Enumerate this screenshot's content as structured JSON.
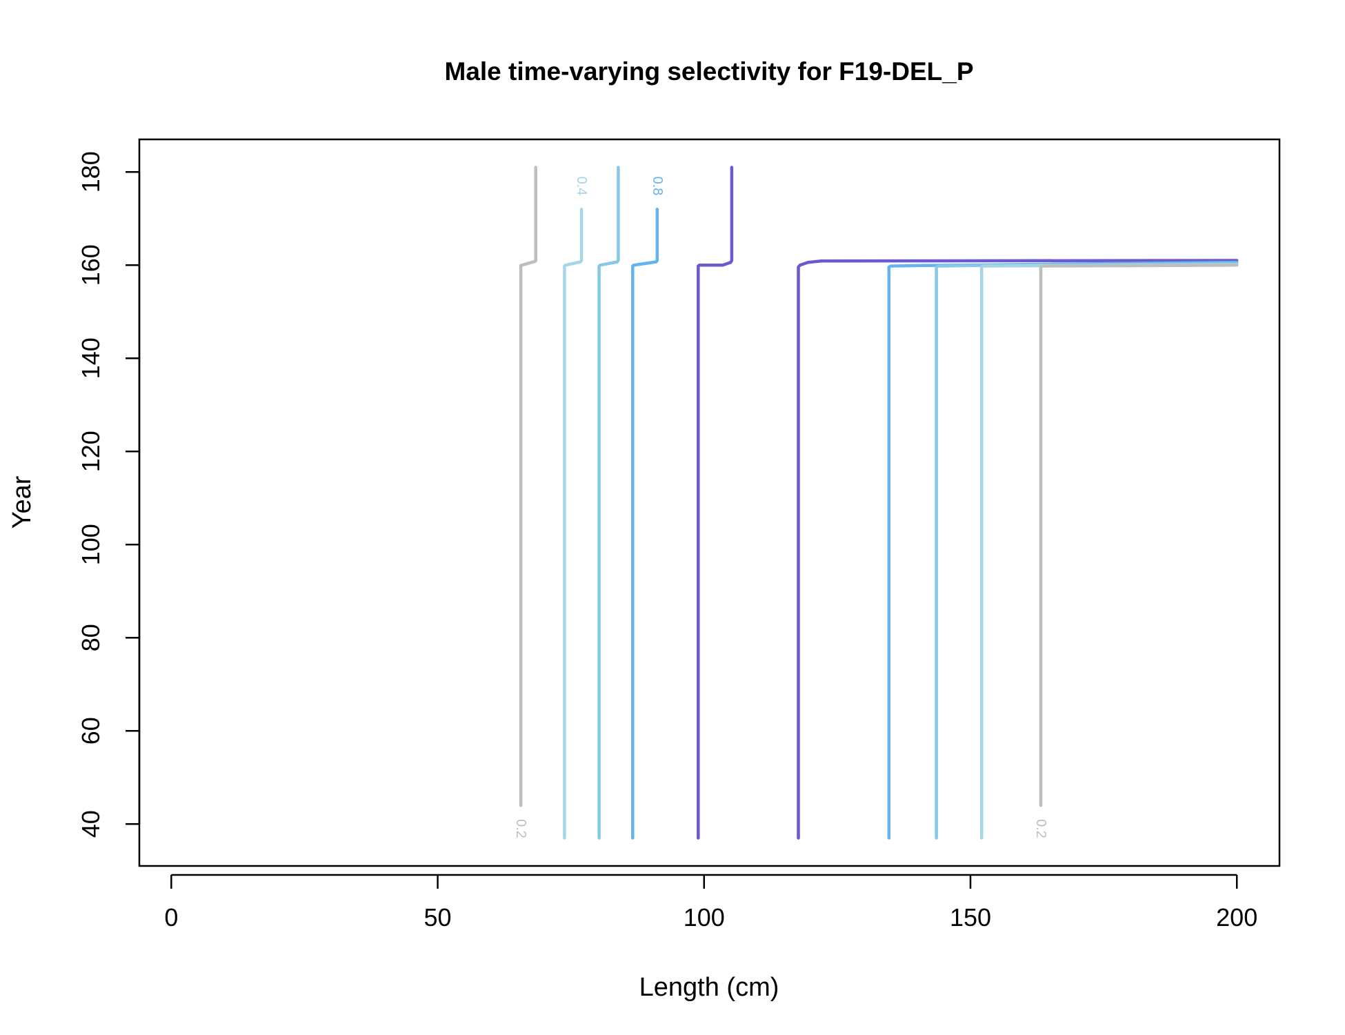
{
  "chart_data": {
    "type": "line",
    "subtype": "contour",
    "title": "Male time-varying selectivity for F19-DEL_P",
    "xlabel": "Length (cm)",
    "ylabel": "Year",
    "xlim": [
      -6,
      208
    ],
    "ylim": [
      31,
      187
    ],
    "xticks": [
      0,
      50,
      100,
      150,
      200
    ],
    "yticks": [
      40,
      60,
      80,
      100,
      120,
      140,
      160,
      180
    ],
    "grid": false,
    "legend": "none",
    "colors": {
      "0.2": "#BEBEBE",
      "0.4": "#A6D6E6",
      "0.6": "#87C8E6",
      "0.8": "#63B3F0",
      "1.0": "#6A5ACD"
    },
    "series": [
      {
        "level": "0.2",
        "x": [
          65.6,
          65.6,
          65.8,
          68.3,
          68.4,
          68.4
        ],
        "y": [
          44,
          159.9,
          160,
          160.8,
          161,
          181
        ],
        "label": "0.2",
        "label_x": 65.6,
        "label_y": 39,
        "label_rot": 90
      },
      {
        "level": "0.4",
        "x": [
          73.8,
          73.8,
          74,
          76.8,
          77,
          77
        ],
        "y": [
          37,
          159.8,
          160,
          160.7,
          161,
          172
        ],
        "label": "0.4",
        "label_x": 77,
        "label_y": 177,
        "label_rot": 90
      },
      {
        "level": "0.6",
        "x": [
          80.3,
          80.3,
          80.5,
          83.7,
          83.9,
          83.9
        ],
        "y": [
          37,
          159.8,
          160,
          160.7,
          161,
          181
        ],
        "label": "",
        "label_x": null,
        "label_y": null,
        "label_rot": 0
      },
      {
        "level": "0.8",
        "x": [
          86.6,
          86.6,
          86.8,
          91,
          91.2,
          91.2
        ],
        "y": [
          37,
          159.8,
          160,
          160.7,
          161,
          172
        ],
        "label": "0.8",
        "label_x": 91.2,
        "label_y": 177,
        "label_rot": 90
      },
      {
        "level": "1.0",
        "x": [
          98.9,
          98.9,
          99.1,
          103.5,
          105,
          105.2,
          105.2
        ],
        "y": [
          37,
          159.8,
          160,
          160,
          160.6,
          161,
          181
        ],
        "label": "",
        "label_x": null,
        "label_y": null,
        "label_rot": 0
      },
      {
        "level": "1.0",
        "x": [
          117.7,
          117.7,
          118,
          119.5,
          122,
          200
        ],
        "y": [
          37,
          159.6,
          160,
          160.6,
          160.9,
          161
        ],
        "label": "",
        "label_x": null,
        "label_y": null,
        "label_rot": 0
      },
      {
        "level": "0.8",
        "x": [
          134.7,
          134.7,
          135,
          140,
          200
        ],
        "y": [
          37,
          159.6,
          159.8,
          159.9,
          160.6
        ],
        "label": "",
        "label_x": null,
        "label_y": null,
        "label_rot": 0
      },
      {
        "level": "0.6",
        "x": [
          143.6,
          143.6,
          143.9,
          150,
          200
        ],
        "y": [
          37,
          159.6,
          159.8,
          159.9,
          160.3
        ],
        "label": "",
        "label_x": null,
        "label_y": null,
        "label_rot": 0
      },
      {
        "level": "0.4",
        "x": [
          152.1,
          152.1,
          152.4,
          200
        ],
        "y": [
          37,
          159.6,
          159.8,
          160.1
        ],
        "label": "",
        "label_x": null,
        "label_y": null,
        "label_rot": 0
      },
      {
        "level": "0.2",
        "x": [
          163.2,
          163.2,
          163.5,
          200
        ],
        "y": [
          44,
          159.6,
          159.8,
          160
        ],
        "label": "0.2",
        "label_x": 163.2,
        "label_y": 39,
        "label_rot": 90
      }
    ]
  }
}
